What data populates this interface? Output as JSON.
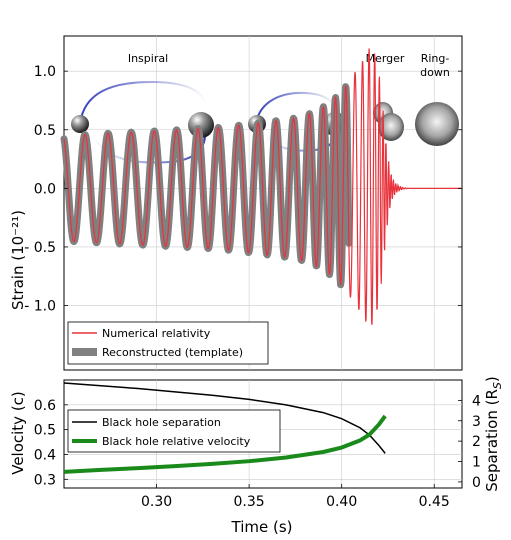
{
  "chart_data": [
    {
      "type": "line",
      "title": "",
      "xlabel": "",
      "ylabel": "Strain (10⁻²¹)",
      "xlim": [
        0.25,
        0.465
      ],
      "ylim": [
        -1.55,
        1.3
      ],
      "yticks": [
        1.0,
        0.5,
        0.0,
        -0.5,
        -1.0
      ],
      "ytick_labels": [
        "1.0",
        "0.5",
        "0.0",
        "- 0.5",
        "- 1.0"
      ],
      "grid": true,
      "legend_position": "lower-left",
      "series": [
        {
          "name": "Numerical relativity",
          "color": "#e8323c",
          "t_cycles": [
            0.25,
            0.262,
            0.2745,
            0.287,
            0.2995,
            0.3115,
            0.323,
            0.334,
            0.345,
            0.3555,
            0.365,
            0.3745,
            0.383,
            0.3905,
            0.397,
            0.4025,
            0.4075,
            0.4115,
            0.415,
            0.418,
            0.4205,
            0.4225,
            0.424,
            0.4255,
            0.4268,
            0.428,
            0.4293,
            0.4305,
            0.4318,
            0.433,
            0.4345,
            0.436,
            0.4375
          ],
          "amp_cycles": [
            0.45,
            0.46,
            0.47,
            0.48,
            0.49,
            0.5,
            0.51,
            0.52,
            0.54,
            0.56,
            0.58,
            0.6,
            0.64,
            0.7,
            0.78,
            0.88,
            1.0,
            1.1,
            1.2,
            1.15,
            0.95,
            0.65,
            0.4,
            0.22,
            0.12,
            0.07,
            0.04,
            0.025,
            0.015,
            0.008,
            0.004,
            0.002,
            0.0
          ]
        },
        {
          "name": "Reconstructed (template)",
          "color": "#808080",
          "end_time": 0.404
        }
      ],
      "annotations": [
        {
          "text": "Inspiral",
          "x": 0.302
        },
        {
          "text": "Merger",
          "x": 0.409
        },
        {
          "text": "Ring-",
          "x": 0.444
        },
        {
          "text": "down",
          "x": 0.444
        }
      ]
    },
    {
      "type": "line",
      "title": "",
      "xlabel": "Time (s)",
      "ylabel": "Velocity (c)",
      "y2label": "Separation (R",
      "y2label_sub": "S",
      "y2label_close": ")",
      "xlim": [
        0.25,
        0.465
      ],
      "ylim": [
        0.265,
        0.7
      ],
      "y2lim": [
        -0.3,
        5.0
      ],
      "xticks": [
        0.3,
        0.35,
        0.4,
        0.45
      ],
      "xtick_labels": [
        "0.30",
        "0.35",
        "0.40",
        "0.45"
      ],
      "yticks": [
        0.3,
        0.4,
        0.5,
        0.6
      ],
      "ytick_labels": [
        "0.3",
        "0.4",
        "0.5",
        "0.6"
      ],
      "y2ticks": [
        0,
        1,
        2,
        3,
        4
      ],
      "y2tick_labels": [
        "0",
        "1",
        "2",
        "3",
        "4"
      ],
      "grid": true,
      "legend_position": "upper-left",
      "series": [
        {
          "name": "Black hole separation",
          "color": "#000000",
          "axis": "right",
          "x": [
            0.25,
            0.27,
            0.29,
            0.31,
            0.33,
            0.35,
            0.37,
            0.39,
            0.4,
            0.41,
            0.415,
            0.42,
            0.4235
          ],
          "y": [
            4.85,
            4.72,
            4.58,
            4.42,
            4.25,
            4.05,
            3.78,
            3.4,
            3.1,
            2.65,
            2.3,
            1.8,
            1.4
          ]
        },
        {
          "name": "Black hole relative velocity",
          "color": "#1a8a1a",
          "axis": "left",
          "x": [
            0.25,
            0.27,
            0.29,
            0.31,
            0.33,
            0.35,
            0.37,
            0.39,
            0.4,
            0.41,
            0.415,
            0.42,
            0.4235
          ],
          "y": [
            0.33,
            0.338,
            0.345,
            0.353,
            0.362,
            0.373,
            0.388,
            0.41,
            0.428,
            0.457,
            0.48,
            0.52,
            0.555
          ]
        }
      ]
    }
  ]
}
